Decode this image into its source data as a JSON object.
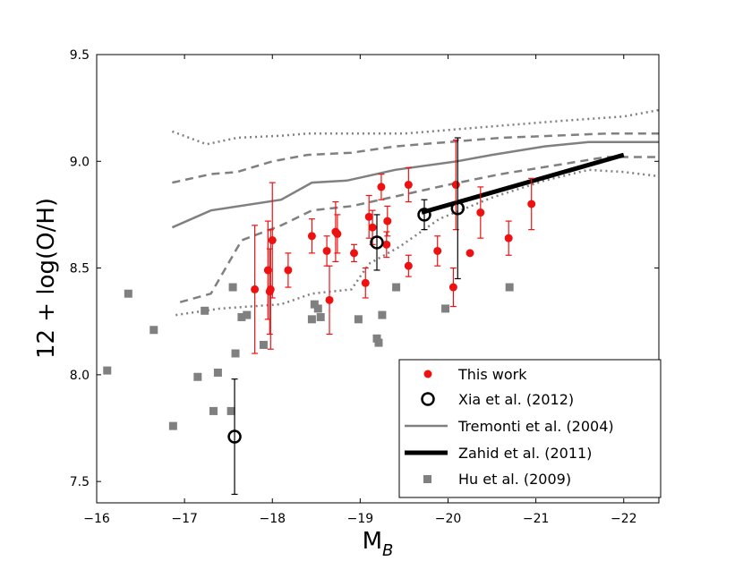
{
  "chart_data": {
    "type": "scatter",
    "title": "",
    "xlabel_main": "M",
    "xlabel_sub": "B",
    "ylabel": "12 + log(O/H)",
    "xlim": [
      -16,
      -22.4
    ],
    "ylim": [
      7.4,
      9.5
    ],
    "xticks": [
      -16,
      -17,
      -18,
      -19,
      -20,
      -21,
      -22
    ],
    "xtick_labels": [
      "−16",
      "−17",
      "−18",
      "−19",
      "−20",
      "−21",
      "−22"
    ],
    "yticks": [
      7.5,
      8.0,
      8.5,
      9.0,
      9.5
    ],
    "ytick_labels": [
      "7.5",
      "8.0",
      "8.5",
      "9.0",
      "9.5"
    ],
    "legend_position": "lower-right",
    "colors": {
      "this_work": "#ee1111",
      "xia": "#000000",
      "tremonti": "#808080",
      "zahid": "#000000",
      "hu": "#808080"
    },
    "legend": [
      {
        "key": "this_work",
        "label": "This work",
        "marker": "circle-filled"
      },
      {
        "key": "xia",
        "label": "Xia et al. (2012)",
        "marker": "circle-open"
      },
      {
        "key": "tremonti",
        "label": "Tremonti et al. (2004)",
        "marker": "line-solid"
      },
      {
        "key": "zahid",
        "label": "Zahid et al. (2011)",
        "marker": "line-thick"
      },
      {
        "key": "hu",
        "label": "Hu et al. (2009)",
        "marker": "square"
      }
    ],
    "series": {
      "this_work": [
        {
          "x": -17.8,
          "y": 8.4,
          "err": 0.3
        },
        {
          "x": -17.95,
          "y": 8.49,
          "err": 0.23
        },
        {
          "x": -17.97,
          "y": 8.39,
          "err": 0.2
        },
        {
          "x": -17.98,
          "y": 8.4,
          "err": 0.28
        },
        {
          "x": -18.0,
          "y": 8.63,
          "err": 0.27
        },
        {
          "x": -18.18,
          "y": 8.49,
          "err": 0.08
        },
        {
          "x": -18.45,
          "y": 8.65,
          "err": 0.08
        },
        {
          "x": -18.62,
          "y": 8.58,
          "err": 0.07
        },
        {
          "x": -18.65,
          "y": 8.35,
          "err": 0.16
        },
        {
          "x": -18.72,
          "y": 8.67,
          "err": 0.14
        },
        {
          "x": -18.74,
          "y": 8.66,
          "err": 0.09
        },
        {
          "x": -18.93,
          "y": 8.57,
          "err": 0.04
        },
        {
          "x": -19.06,
          "y": 8.43,
          "err": 0.07
        },
        {
          "x": -19.1,
          "y": 8.74,
          "err": 0.1
        },
        {
          "x": -19.14,
          "y": 8.69,
          "err": 0.08
        },
        {
          "x": -19.24,
          "y": 8.88,
          "err": 0.06
        },
        {
          "x": -19.3,
          "y": 8.61,
          "err": 0.06
        },
        {
          "x": -19.31,
          "y": 8.72,
          "err": 0.07
        },
        {
          "x": -19.55,
          "y": 8.51,
          "err": 0.05
        },
        {
          "x": -19.55,
          "y": 8.89,
          "err": 0.08
        },
        {
          "x": -19.88,
          "y": 8.58,
          "err": 0.07
        },
        {
          "x": -20.06,
          "y": 8.41,
          "err": 0.09
        },
        {
          "x": -20.09,
          "y": 8.89,
          "err": 0.21
        },
        {
          "x": -20.25,
          "y": 8.57,
          "err": 0.0
        },
        {
          "x": -20.37,
          "y": 8.76,
          "err": 0.12
        },
        {
          "x": -20.69,
          "y": 8.64,
          "err": 0.08
        },
        {
          "x": -20.95,
          "y": 8.8,
          "err": 0.12
        }
      ],
      "xia": [
        {
          "x": -17.57,
          "y": 7.71,
          "err": 0.27
        },
        {
          "x": -19.19,
          "y": 8.62,
          "err": 0.13
        },
        {
          "x": -19.73,
          "y": 8.75,
          "err": 0.07
        },
        {
          "x": -20.11,
          "y": 8.78,
          "err": 0.33
        }
      ],
      "tremonti": {
        "median": [
          [
            -16.86,
            8.69
          ],
          [
            -17.3,
            8.77
          ],
          [
            -18.1,
            8.82
          ],
          [
            -18.45,
            8.9
          ],
          [
            -18.85,
            8.91
          ],
          [
            -19.4,
            8.96
          ],
          [
            -20.1,
            9.0
          ],
          [
            -20.5,
            9.03
          ],
          [
            -21.1,
            9.07
          ],
          [
            -21.6,
            9.09
          ],
          [
            -22.0,
            9.09
          ],
          [
            -22.4,
            9.09
          ]
        ],
        "inner_upper": [
          [
            -16.86,
            8.9
          ],
          [
            -17.3,
            8.94
          ],
          [
            -17.6,
            8.95
          ],
          [
            -18.0,
            9.0
          ],
          [
            -18.4,
            9.03
          ],
          [
            -18.9,
            9.04
          ],
          [
            -19.4,
            9.07
          ],
          [
            -20.0,
            9.09
          ],
          [
            -20.6,
            9.11
          ],
          [
            -21.2,
            9.12
          ],
          [
            -21.8,
            9.13
          ],
          [
            -22.4,
            9.13
          ]
        ],
        "inner_lower": [
          [
            -16.95,
            8.34
          ],
          [
            -17.3,
            8.38
          ],
          [
            -17.65,
            8.63
          ],
          [
            -18.1,
            8.7
          ],
          [
            -18.45,
            8.77
          ],
          [
            -18.9,
            8.79
          ],
          [
            -19.45,
            8.84
          ],
          [
            -20.0,
            8.89
          ],
          [
            -20.6,
            8.94
          ],
          [
            -21.2,
            8.98
          ],
          [
            -21.8,
            9.02
          ],
          [
            -22.4,
            9.02
          ]
        ],
        "outer_upper": [
          [
            -16.86,
            9.14
          ],
          [
            -17.25,
            9.08
          ],
          [
            -17.6,
            9.11
          ],
          [
            -18.1,
            9.12
          ],
          [
            -18.4,
            9.13
          ],
          [
            -19.0,
            9.13
          ],
          [
            -19.5,
            9.13
          ],
          [
            -20.1,
            9.15
          ],
          [
            -20.7,
            9.17
          ],
          [
            -21.3,
            9.19
          ],
          [
            -22.0,
            9.21
          ],
          [
            -22.4,
            9.24
          ]
        ],
        "outer_lower": [
          [
            -16.9,
            8.28
          ],
          [
            -17.4,
            8.31
          ],
          [
            -18.1,
            8.33
          ],
          [
            -18.45,
            8.38
          ],
          [
            -18.9,
            8.4
          ],
          [
            -19.1,
            8.52
          ],
          [
            -19.45,
            8.6
          ],
          [
            -19.9,
            8.73
          ],
          [
            -20.5,
            8.83
          ],
          [
            -21.1,
            8.91
          ],
          [
            -21.6,
            8.96
          ],
          [
            -22.0,
            8.95
          ],
          [
            -22.4,
            8.93
          ]
        ]
      },
      "zahid": [
        [
          -19.7,
          8.76
        ],
        [
          -22.0,
          9.03
        ]
      ],
      "hu": [
        {
          "x": -16.12,
          "y": 8.02
        },
        {
          "x": -16.36,
          "y": 8.38
        },
        {
          "x": -16.65,
          "y": 8.21
        },
        {
          "x": -16.87,
          "y": 7.76
        },
        {
          "x": -17.15,
          "y": 7.99
        },
        {
          "x": -17.23,
          "y": 8.3
        },
        {
          "x": -17.33,
          "y": 7.83
        },
        {
          "x": -17.38,
          "y": 8.01
        },
        {
          "x": -17.53,
          "y": 7.83
        },
        {
          "x": -17.55,
          "y": 8.41
        },
        {
          "x": -17.58,
          "y": 8.1
        },
        {
          "x": -17.65,
          "y": 8.27
        },
        {
          "x": -17.71,
          "y": 8.28
        },
        {
          "x": -17.9,
          "y": 8.14
        },
        {
          "x": -18.45,
          "y": 8.26
        },
        {
          "x": -18.48,
          "y": 8.33
        },
        {
          "x": -18.52,
          "y": 8.31
        },
        {
          "x": -18.55,
          "y": 8.27
        },
        {
          "x": -18.98,
          "y": 8.26
        },
        {
          "x": -19.19,
          "y": 8.17
        },
        {
          "x": -19.21,
          "y": 8.15
        },
        {
          "x": -19.25,
          "y": 8.28
        },
        {
          "x": -19.41,
          "y": 8.41
        },
        {
          "x": -19.97,
          "y": 8.31
        },
        {
          "x": -20.7,
          "y": 8.41
        }
      ]
    }
  }
}
